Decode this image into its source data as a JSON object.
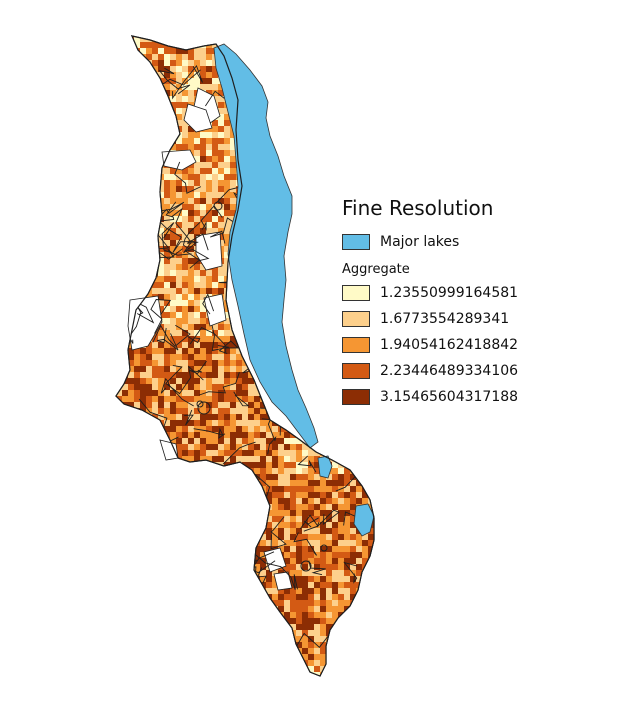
{
  "map": {
    "title": "Fine Resolution",
    "lake_layer": {
      "label": "Major lakes",
      "color": "#62bde6"
    },
    "aggregate": {
      "title": "Aggregate",
      "classes": [
        {
          "label": "1.23550999164581",
          "color": "#fffac7"
        },
        {
          "label": "1.6773554289341",
          "color": "#fdd08c"
        },
        {
          "label": "1.94054162418842",
          "color": "#f59633"
        },
        {
          "label": "2.23446489334106",
          "color": "#d35a14"
        },
        {
          "label": "3.15465604317188",
          "color": "#8c2d04"
        }
      ]
    },
    "boundary_color": "#1e1e1e",
    "nodata_color": "#ffffff"
  }
}
